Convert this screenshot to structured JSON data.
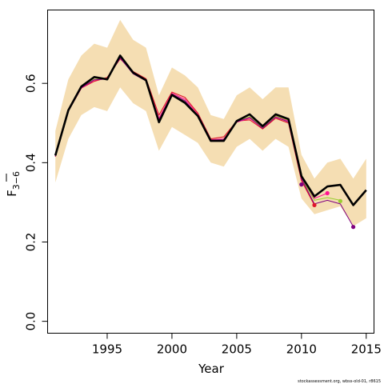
{
  "chart_data": {
    "type": "line",
    "xlabel": "Year",
    "ylabel": "F",
    "ylabel_sub": "3−6",
    "xlim": [
      1990.4,
      2015.6
    ],
    "ylim": [
      -0.03,
      0.785
    ],
    "xticks": [
      1995,
      2000,
      2005,
      2010,
      2015
    ],
    "yticks": [
      0.0,
      0.2,
      0.4,
      0.6
    ],
    "ytick_labels": [
      "0.0",
      "0.2",
      "0.4",
      "0.6"
    ],
    "band_color": "#f5deb3",
    "credit": "stockassessment.org, wbss-old-01, r8615",
    "band": {
      "x": [
        1991,
        1992,
        1993,
        1994,
        1995,
        1996,
        1997,
        1998,
        1999,
        2000,
        2001,
        2002,
        2003,
        2004,
        2005,
        2006,
        2007,
        2008,
        2009,
        2010,
        2011,
        2012,
        2013,
        2014,
        2015
      ],
      "lower": [
        0.35,
        0.46,
        0.52,
        0.54,
        0.53,
        0.59,
        0.55,
        0.53,
        0.43,
        0.49,
        0.47,
        0.45,
        0.4,
        0.39,
        0.44,
        0.46,
        0.43,
        0.46,
        0.44,
        0.31,
        0.27,
        0.28,
        0.29,
        0.24,
        0.26
      ],
      "upper": [
        0.48,
        0.61,
        0.67,
        0.7,
        0.69,
        0.76,
        0.71,
        0.69,
        0.57,
        0.64,
        0.62,
        0.59,
        0.52,
        0.51,
        0.57,
        0.59,
        0.56,
        0.59,
        0.59,
        0.42,
        0.36,
        0.4,
        0.41,
        0.36,
        0.41
      ]
    },
    "series": [
      {
        "color": "#000000",
        "width": 2.6,
        "x": [
          1991,
          1992,
          1993,
          1994,
          1995,
          1996,
          1997,
          1998,
          1999,
          2000,
          2001,
          2002,
          2003,
          2004,
          2005,
          2006,
          2007,
          2008,
          2009,
          2010,
          2011,
          2012,
          2013,
          2014,
          2015
        ],
        "values": [
          0.418,
          0.532,
          0.592,
          0.616,
          0.61,
          0.67,
          0.627,
          0.608,
          0.502,
          0.571,
          0.551,
          0.518,
          0.455,
          0.455,
          0.505,
          0.522,
          0.492,
          0.522,
          0.51,
          0.366,
          0.315,
          0.34,
          0.344,
          0.293,
          0.331
        ]
      },
      {
        "color": "#e0142b",
        "width": 1.1,
        "x": [
          1991,
          1992,
          1993,
          1994,
          1995,
          1996,
          1997,
          1998,
          1999,
          2000,
          2001,
          2002,
          2003,
          2004,
          2005,
          2006,
          2007,
          2008,
          2009,
          2010,
          2011
        ],
        "values": [
          0.415,
          0.53,
          0.588,
          0.605,
          0.615,
          0.662,
          0.63,
          0.612,
          0.52,
          0.578,
          0.565,
          0.525,
          0.46,
          0.465,
          0.505,
          0.508,
          0.485,
          0.512,
          0.5,
          0.355,
          0.293
        ],
        "end_point": [
          2011,
          0.293
        ]
      },
      {
        "color": "#ff1493",
        "width": 1.0,
        "x": [
          1991,
          1992,
          1993,
          1994,
          1995,
          1996,
          1997,
          1998,
          1999,
          2000,
          2001,
          2002,
          2003,
          2004,
          2005,
          2006,
          2007,
          2008,
          2009,
          2010,
          2011,
          2012
        ],
        "values": [
          0.417,
          0.53,
          0.588,
          0.608,
          0.612,
          0.665,
          0.625,
          0.608,
          0.512,
          0.575,
          0.56,
          0.522,
          0.458,
          0.46,
          0.502,
          0.512,
          0.488,
          0.516,
          0.505,
          0.358,
          0.31,
          0.323
        ],
        "end_point": [
          2012,
          0.323
        ]
      },
      {
        "color": "#9acd32",
        "width": 1.0,
        "x": [
          1991,
          1992,
          1993,
          1994,
          1995,
          1996,
          1997,
          1998,
          1999,
          2000,
          2001,
          2002,
          2003,
          2004,
          2005,
          2006,
          2007,
          2008,
          2009,
          2010,
          2011,
          2012,
          2013
        ],
        "values": [
          0.418,
          0.531,
          0.59,
          0.61,
          0.611,
          0.668,
          0.626,
          0.607,
          0.506,
          0.572,
          0.555,
          0.52,
          0.456,
          0.457,
          0.503,
          0.516,
          0.489,
          0.518,
          0.507,
          0.362,
          0.305,
          0.312,
          0.305
        ],
        "end_point": [
          2013,
          0.303
        ]
      },
      {
        "color": "#800080",
        "width": 1.0,
        "x": [
          1991,
          1992,
          1993,
          1994,
          1995,
          1996,
          1997,
          1998,
          1999,
          2000,
          2001,
          2002,
          2003,
          2004,
          2005,
          2006,
          2007,
          2008,
          2009,
          2010,
          2011,
          2012,
          2013,
          2014
        ],
        "values": [
          0.416,
          0.53,
          0.589,
          0.609,
          0.611,
          0.664,
          0.624,
          0.606,
          0.508,
          0.573,
          0.556,
          0.519,
          0.457,
          0.458,
          0.503,
          0.514,
          0.487,
          0.515,
          0.503,
          0.36,
          0.296,
          0.305,
          0.296,
          0.239
        ],
        "end_point": [
          2014,
          0.238
        ],
        "extra_point": [
          2010,
          0.345
        ]
      }
    ]
  }
}
